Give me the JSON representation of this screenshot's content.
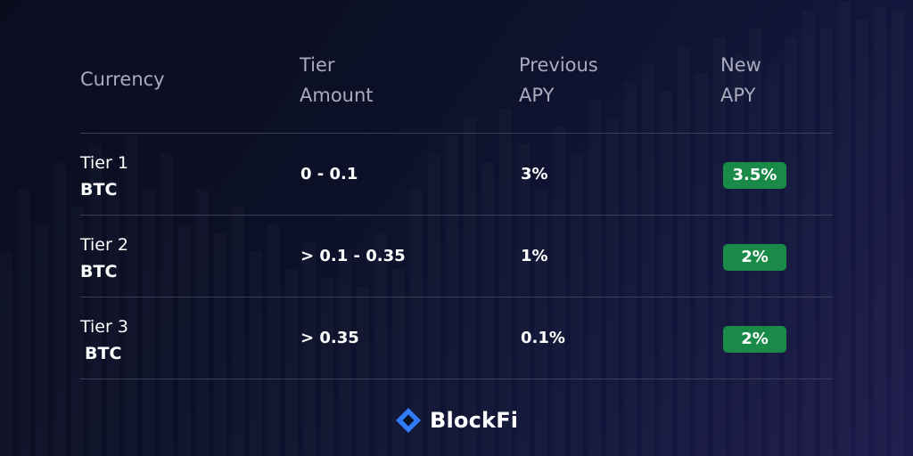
{
  "table": {
    "headers": [
      {
        "lines": [
          "Currency"
        ]
      },
      {
        "lines": [
          "Tier",
          "Amount"
        ]
      },
      {
        "lines": [
          "Previous",
          "APY"
        ]
      },
      {
        "lines": [
          "New",
          "APY"
        ]
      }
    ],
    "rows": [
      {
        "tier": "Tier 1",
        "currency": "BTC",
        "amount": "0 - 0.1",
        "previous_apy": "3%",
        "new_apy": "3.5%"
      },
      {
        "tier": "Tier 2",
        "currency": "BTC",
        "amount": "> 0.1 - 0.35",
        "previous_apy": "1%",
        "new_apy": "2%"
      },
      {
        "tier": "Tier 3",
        "currency": "BTC",
        "amount": "> 0.35",
        "previous_apy": "0.1%",
        "new_apy": "2%"
      }
    ]
  },
  "brand": {
    "name": "BlockFi",
    "logo_icon": "blockfi-diamond-logo-icon"
  },
  "colors": {
    "background": "#0c1026",
    "badge_green": "#1a8a48",
    "header_text": "#a9abbd",
    "divider": "#3a3e58",
    "logo_blue": "#2f7cf6"
  }
}
